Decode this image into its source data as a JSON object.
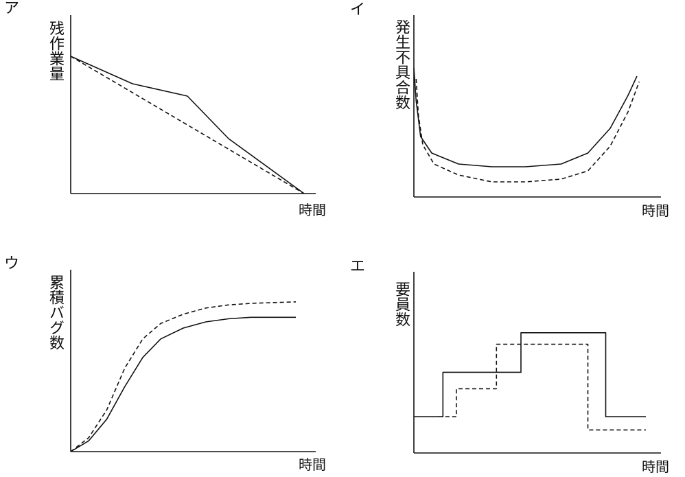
{
  "chart_data": [
    {
      "type": "line",
      "panel": "ア",
      "ylabel": "残作業量",
      "xlabel": "時間",
      "series": [
        {
          "style": "solid",
          "points": [
            [
              0,
              100
            ],
            [
              18,
              80
            ],
            [
              34,
              71
            ],
            [
              46,
              40
            ],
            [
              68,
              0
            ]
          ]
        },
        {
          "style": "dashed",
          "points": [
            [
              0,
              100
            ],
            [
              68,
              0
            ]
          ]
        }
      ]
    },
    {
      "type": "line",
      "panel": "イ",
      "ylabel": "発生不具合数",
      "xlabel": "時間",
      "series": [
        {
          "style": "solid",
          "points": [
            [
              0,
              94
            ],
            [
              1,
              70
            ],
            [
              3,
              44
            ],
            [
              8,
              32
            ],
            [
              20,
              24
            ],
            [
              35,
              22
            ],
            [
              50,
              22
            ],
            [
              66,
              24
            ],
            [
              78,
              32
            ],
            [
              88,
              50
            ],
            [
              96,
              74
            ],
            [
              100,
              88
            ]
          ]
        },
        {
          "style": "dashed",
          "points": [
            [
              1,
              86
            ],
            [
              2,
              60
            ],
            [
              4,
              38
            ],
            [
              9,
              24
            ],
            [
              20,
              16
            ],
            [
              35,
              11
            ],
            [
              50,
              11
            ],
            [
              66,
              13
            ],
            [
              78,
              19
            ],
            [
              88,
              37
            ],
            [
              96,
              62
            ],
            [
              101,
              84
            ]
          ]
        }
      ]
    },
    {
      "type": "line",
      "panel": "ウ",
      "ylabel": "累積バグ数",
      "xlabel": "時間",
      "series": [
        {
          "style": "solid",
          "points": [
            [
              0,
              0
            ],
            [
              8,
              7
            ],
            [
              16,
              21
            ],
            [
              24,
              42
            ],
            [
              32,
              61
            ],
            [
              40,
              73
            ],
            [
              50,
              80
            ],
            [
              60,
              84
            ],
            [
              70,
              86
            ],
            [
              80,
              87
            ],
            [
              100,
              87
            ]
          ]
        },
        {
          "style": "dashed",
          "points": [
            [
              0,
              0
            ],
            [
              8,
              9
            ],
            [
              16,
              27
            ],
            [
              24,
              54
            ],
            [
              32,
              73
            ],
            [
              40,
              83
            ],
            [
              50,
              89
            ],
            [
              60,
              93
            ],
            [
              70,
              95
            ],
            [
              80,
              96
            ],
            [
              100,
              97
            ]
          ]
        }
      ]
    },
    {
      "type": "line",
      "panel": "エ",
      "ylabel": "要員数",
      "xlabel": "時間",
      "series": [
        {
          "style": "solid",
          "points": [
            [
              0,
              22
            ],
            [
              13,
              22
            ],
            [
              13,
              49
            ],
            [
              48,
              49
            ],
            [
              48,
              73
            ],
            [
              86,
              73
            ],
            [
              86,
              22
            ],
            [
              104,
              22
            ]
          ]
        },
        {
          "style": "dashed",
          "points": [
            [
              11,
              22
            ],
            [
              19,
              22
            ],
            [
              19,
              39
            ],
            [
              37,
              39
            ],
            [
              37,
              66
            ],
            [
              78,
              66
            ],
            [
              78,
              14
            ],
            [
              104,
              14
            ]
          ]
        }
      ]
    }
  ]
}
